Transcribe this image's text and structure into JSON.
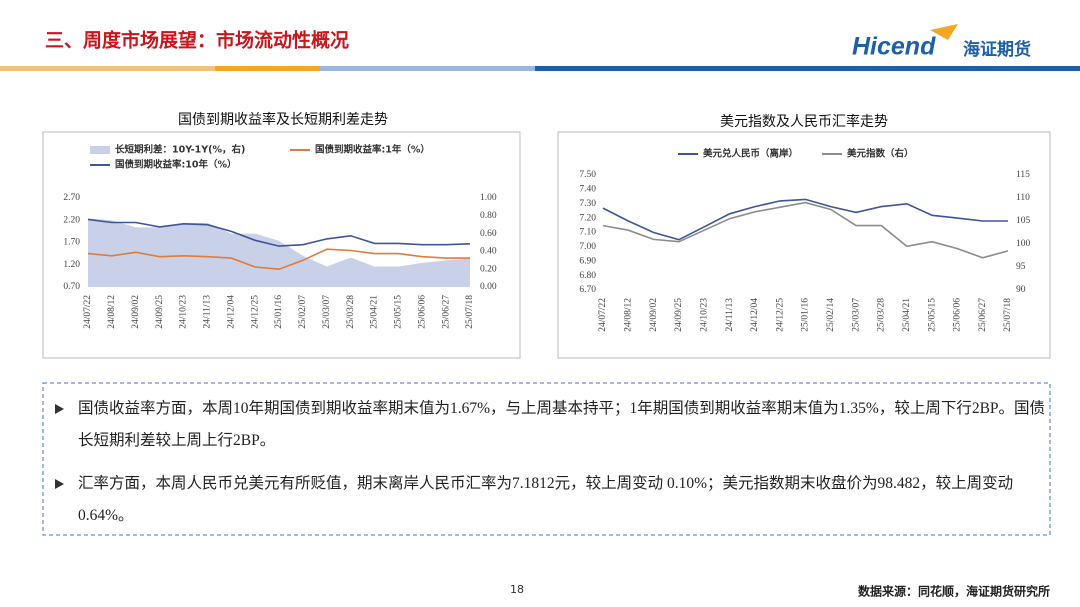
{
  "header": {
    "title": "三、周度市场展望：市场流动性概况",
    "logo_en": "Hicend",
    "logo_cn": "海证期货"
  },
  "chart_data": [
    {
      "type": "line",
      "title": "国债到期收益率及长短期利差走势",
      "categories": [
        "24/07/22",
        "24/08/12",
        "24/09/02",
        "24/09/25",
        "24/10/23",
        "24/11/13",
        "24/12/04",
        "24/12/25",
        "25/01/16",
        "25/02/07",
        "25/03/07",
        "25/03/28",
        "25/04/21",
        "25/05/15",
        "25/06/06",
        "25/06/27",
        "25/07/18"
      ],
      "series": [
        {
          "name": "长短期利差：10Y-1Y(%，右)",
          "color": "#c9d1e8",
          "style": "area",
          "axis": "y2",
          "values": [
            0.77,
            0.75,
            0.67,
            0.67,
            0.72,
            0.72,
            0.6,
            0.6,
            0.52,
            0.35,
            0.23,
            0.33,
            0.23,
            0.23,
            0.27,
            0.3,
            0.32
          ]
        },
        {
          "name": "国债到期收益率:1年（%）",
          "color": "#e07b39",
          "values": [
            1.45,
            1.4,
            1.48,
            1.38,
            1.4,
            1.38,
            1.35,
            1.15,
            1.1,
            1.3,
            1.55,
            1.52,
            1.45,
            1.45,
            1.38,
            1.35,
            1.35
          ]
        },
        {
          "name": "国债到期收益率:10年（%）",
          "color": "#3f5597",
          "values": [
            2.22,
            2.15,
            2.15,
            2.05,
            2.12,
            2.1,
            1.95,
            1.75,
            1.62,
            1.65,
            1.78,
            1.85,
            1.68,
            1.68,
            1.65,
            1.65,
            1.67
          ]
        }
      ],
      "ylim": [
        0.7,
        2.7
      ],
      "yticks": [
        {
          "value": 0.7,
          "label": "0.70"
        },
        {
          "value": 1.2,
          "label": "1.20"
        },
        {
          "value": 1.7,
          "label": "1.70"
        },
        {
          "value": 2.2,
          "label": "2.20"
        },
        {
          "value": 2.7,
          "label": "2.70"
        }
      ],
      "y2lim": [
        0,
        1
      ],
      "y2ticks": [
        {
          "value": 0,
          "label": "0.00"
        },
        {
          "value": 0.2,
          "label": "0.20"
        },
        {
          "value": 0.4,
          "label": "0.40"
        },
        {
          "value": 0.6,
          "label": "0.60"
        },
        {
          "value": 0.8,
          "label": "0.80"
        },
        {
          "value": 1,
          "label": "1.00"
        }
      ]
    },
    {
      "type": "line",
      "title": "美元指数及人民币汇率走势",
      "categories": [
        "24/07/22",
        "24/08/12",
        "24/09/02",
        "24/09/25",
        "24/10/23",
        "24/11/13",
        "24/12/04",
        "24/12/25",
        "25/01/16",
        "25/02/14",
        "25/03/07",
        "25/03/28",
        "25/04/21",
        "25/05/15",
        "25/06/06",
        "25/06/27",
        "25/07/18"
      ],
      "series": [
        {
          "name": "美元兑人民币（离岸）",
          "color": "#3f5597",
          "values": [
            7.27,
            7.18,
            7.1,
            7.05,
            7.14,
            7.23,
            7.28,
            7.32,
            7.33,
            7.28,
            7.24,
            7.28,
            7.3,
            7.22,
            7.2,
            7.18,
            7.18
          ]
        },
        {
          "name": "美元指数（右）",
          "color": "#8c8c8c",
          "axis": "y2",
          "values": [
            104,
            103,
            101,
            100.5,
            103,
            105.5,
            107,
            108,
            109,
            107.5,
            104,
            104,
            99.5,
            100.5,
            99,
            97,
            98.5
          ]
        }
      ],
      "ylim": [
        6.7,
        7.5
      ],
      "yticks": [
        {
          "value": 6.7,
          "label": "6.70"
        },
        {
          "value": 6.8,
          "label": "6.80"
        },
        {
          "value": 6.9,
          "label": "6.90"
        },
        {
          "value": 7,
          "label": "7.00"
        },
        {
          "value": 7.1,
          "label": "7.10"
        },
        {
          "value": 7.2,
          "label": "7.20"
        },
        {
          "value": 7.3,
          "label": "7.30"
        },
        {
          "value": 7.4,
          "label": "7.40"
        },
        {
          "value": 7.5,
          "label": "7.50"
        }
      ],
      "y2lim": [
        90,
        115
      ],
      "y2ticks": [
        90,
        95,
        100,
        105,
        110,
        115
      ]
    }
  ],
  "bullets": [
    "国债收益率方面，本周10年期国债到期收益率期末值为1.67%，与上周基本持平；1年期国债到期收益率期末值为1.35%，较上周下行2BP。国债长短期利差较上周上行2BP。",
    "汇率方面，本周人民币兑美元有所贬值，期末离岸人民币汇率为7.1812元，较上周变动 0.10%；美元指数期末收盘价为98.482，较上周变动 0.64%。"
  ],
  "footer": {
    "page": "18",
    "source": "数据来源：同花顺，海证期货研究所"
  }
}
